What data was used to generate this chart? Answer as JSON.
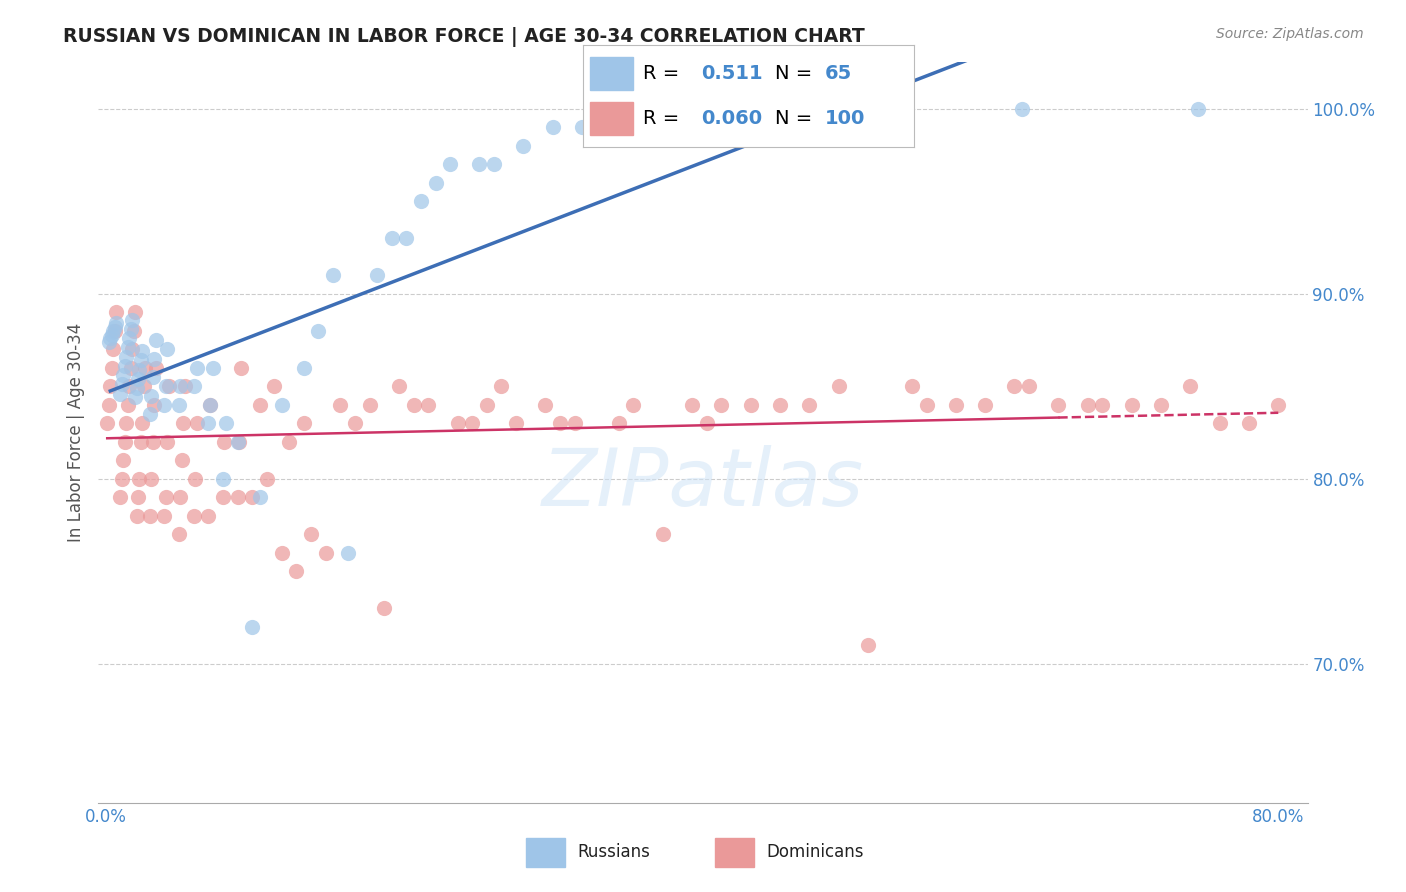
{
  "title": "RUSSIAN VS DOMINICAN IN LABOR FORCE | AGE 30-34 CORRELATION CHART",
  "source": "Source: ZipAtlas.com",
  "ylabel": "In Labor Force | Age 30-34",
  "xlim": [
    -0.005,
    0.82
  ],
  "ylim": [
    0.625,
    1.025
  ],
  "xticks": [
    0.0,
    0.1,
    0.2,
    0.3,
    0.4,
    0.5,
    0.6,
    0.7,
    0.8
  ],
  "xticklabels": [
    "0.0%",
    "",
    "",
    "",
    "",
    "",
    "",
    "",
    "80.0%"
  ],
  "yticks_right": [
    0.7,
    0.8,
    0.9,
    1.0
  ],
  "yticklabels_right": [
    "70.0%",
    "80.0%",
    "90.0%",
    "100.0%"
  ],
  "russian_color": "#9fc5e8",
  "dominican_color": "#ea9999",
  "russian_line_color": "#3d6eb5",
  "dominican_line_color": "#cc3366",
  "watermark": "ZIPatlas",
  "russians_x": [
    0.002,
    0.003,
    0.004,
    0.005,
    0.006,
    0.007,
    0.01,
    0.011,
    0.012,
    0.013,
    0.014,
    0.015,
    0.016,
    0.017,
    0.018,
    0.02,
    0.021,
    0.022,
    0.023,
    0.024,
    0.025,
    0.03,
    0.031,
    0.032,
    0.033,
    0.034,
    0.04,
    0.041,
    0.042,
    0.05,
    0.051,
    0.06,
    0.062,
    0.07,
    0.071,
    0.073,
    0.08,
    0.082,
    0.09,
    0.1,
    0.105,
    0.12,
    0.135,
    0.145,
    0.155,
    0.165,
    0.185,
    0.195,
    0.205,
    0.215,
    0.225,
    0.235,
    0.255,
    0.265,
    0.285,
    0.305,
    0.325,
    0.355,
    0.385,
    0.405,
    0.435,
    0.485,
    0.535,
    0.625,
    0.745
  ],
  "russians_y": [
    0.874,
    0.876,
    0.878,
    0.88,
    0.882,
    0.884,
    0.846,
    0.851,
    0.856,
    0.861,
    0.866,
    0.871,
    0.876,
    0.881,
    0.886,
    0.844,
    0.849,
    0.854,
    0.859,
    0.864,
    0.869,
    0.835,
    0.845,
    0.855,
    0.865,
    0.875,
    0.84,
    0.85,
    0.87,
    0.84,
    0.85,
    0.85,
    0.86,
    0.83,
    0.84,
    0.86,
    0.8,
    0.83,
    0.82,
    0.72,
    0.79,
    0.84,
    0.86,
    0.88,
    0.91,
    0.76,
    0.91,
    0.93,
    0.93,
    0.95,
    0.96,
    0.97,
    0.97,
    0.97,
    0.98,
    0.99,
    0.99,
    1.0,
    1.0,
    1.0,
    1.0,
    1.0,
    1.0,
    1.0,
    1.0
  ],
  "dominicans_x": [
    0.001,
    0.002,
    0.003,
    0.004,
    0.005,
    0.006,
    0.007,
    0.01,
    0.011,
    0.012,
    0.013,
    0.014,
    0.015,
    0.016,
    0.017,
    0.018,
    0.019,
    0.02,
    0.021,
    0.022,
    0.023,
    0.024,
    0.025,
    0.026,
    0.027,
    0.03,
    0.031,
    0.032,
    0.033,
    0.034,
    0.04,
    0.041,
    0.042,
    0.043,
    0.05,
    0.051,
    0.052,
    0.053,
    0.054,
    0.06,
    0.061,
    0.062,
    0.07,
    0.071,
    0.08,
    0.081,
    0.09,
    0.091,
    0.092,
    0.1,
    0.105,
    0.11,
    0.115,
    0.12,
    0.125,
    0.13,
    0.135,
    0.14,
    0.15,
    0.16,
    0.17,
    0.18,
    0.19,
    0.2,
    0.21,
    0.22,
    0.24,
    0.25,
    0.26,
    0.27,
    0.28,
    0.3,
    0.31,
    0.32,
    0.35,
    0.36,
    0.38,
    0.4,
    0.41,
    0.42,
    0.44,
    0.46,
    0.48,
    0.5,
    0.52,
    0.55,
    0.56,
    0.58,
    0.6,
    0.62,
    0.63,
    0.65,
    0.67,
    0.68,
    0.7,
    0.72,
    0.74,
    0.76,
    0.78,
    0.8
  ],
  "dominicans_y": [
    0.83,
    0.84,
    0.85,
    0.86,
    0.87,
    0.88,
    0.89,
    0.79,
    0.8,
    0.81,
    0.82,
    0.83,
    0.84,
    0.85,
    0.86,
    0.87,
    0.88,
    0.89,
    0.78,
    0.79,
    0.8,
    0.82,
    0.83,
    0.85,
    0.86,
    0.78,
    0.8,
    0.82,
    0.84,
    0.86,
    0.78,
    0.79,
    0.82,
    0.85,
    0.77,
    0.79,
    0.81,
    0.83,
    0.85,
    0.78,
    0.8,
    0.83,
    0.78,
    0.84,
    0.79,
    0.82,
    0.79,
    0.82,
    0.86,
    0.79,
    0.84,
    0.8,
    0.85,
    0.76,
    0.82,
    0.75,
    0.83,
    0.77,
    0.76,
    0.84,
    0.83,
    0.84,
    0.73,
    0.85,
    0.84,
    0.84,
    0.83,
    0.83,
    0.84,
    0.85,
    0.83,
    0.84,
    0.83,
    0.83,
    0.83,
    0.84,
    0.77,
    0.84,
    0.83,
    0.84,
    0.84,
    0.84,
    0.84,
    0.85,
    0.71,
    0.85,
    0.84,
    0.84,
    0.84,
    0.85,
    0.85,
    0.84,
    0.84,
    0.84,
    0.84,
    0.84,
    0.85,
    0.83,
    0.83,
    0.84
  ]
}
